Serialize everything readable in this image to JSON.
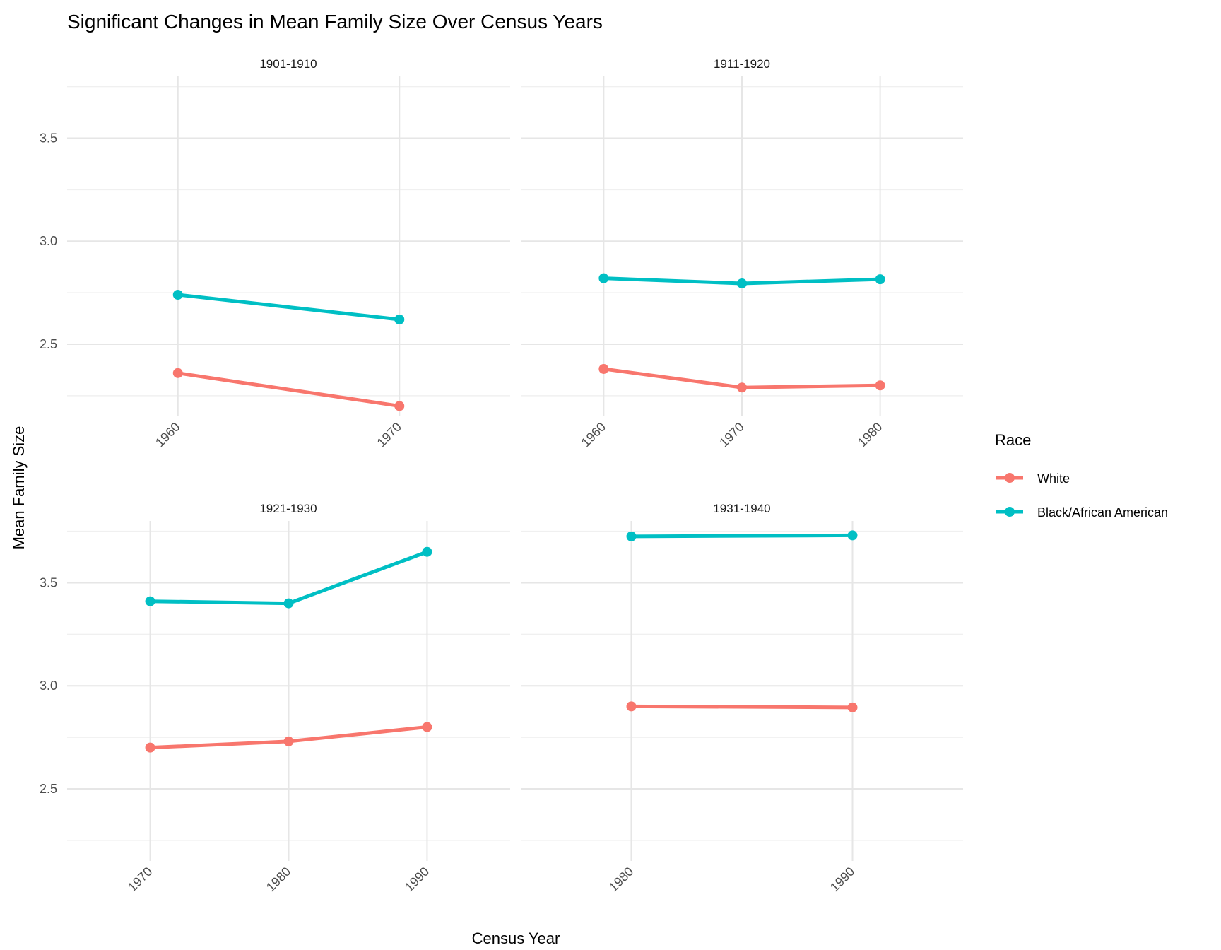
{
  "chart_data": {
    "type": "line",
    "title": "Significant Changes in Mean Family Size Over Census Years",
    "xlabel": "Census Year",
    "ylabel": "Mean Family Size",
    "ylim": [
      2.15,
      3.8
    ],
    "yticks": [
      2.5,
      3.0,
      3.5
    ],
    "y_tick_labels": [
      "2.5",
      "3.0",
      "3.5"
    ],
    "legend": {
      "title": "Race",
      "position": "right",
      "entries": [
        {
          "name": "White",
          "color": "#F8766D"
        },
        {
          "name": "Black/African American",
          "color": "#00BFC4"
        }
      ]
    },
    "panels": [
      {
        "label": "1901-1910",
        "x": [
          1960,
          1970
        ],
        "x_tick_labels": [
          "1960",
          "1970"
        ],
        "series": [
          {
            "name": "White",
            "values": [
              2.36,
              2.2
            ]
          },
          {
            "name": "Black/African American",
            "values": [
              2.74,
              2.62
            ]
          }
        ]
      },
      {
        "label": "1911-1920",
        "x": [
          1960,
          1970,
          1980
        ],
        "x_tick_labels": [
          "1960",
          "1970",
          "1980"
        ],
        "series": [
          {
            "name": "White",
            "values": [
              2.38,
              2.29,
              2.3
            ]
          },
          {
            "name": "Black/African American",
            "values": [
              2.82,
              2.795,
              2.815
            ]
          }
        ]
      },
      {
        "label": "1921-1930",
        "x": [
          1970,
          1980,
          1990
        ],
        "x_tick_labels": [
          "1970",
          "1980",
          "1990"
        ],
        "series": [
          {
            "name": "White",
            "values": [
              2.7,
              2.73,
              2.8
            ]
          },
          {
            "name": "Black/African American",
            "values": [
              3.41,
              3.4,
              3.65
            ]
          }
        ]
      },
      {
        "label": "1931-1940",
        "x": [
          1980,
          1990
        ],
        "x_tick_labels": [
          "1980",
          "1990"
        ],
        "series": [
          {
            "name": "White",
            "values": [
              2.9,
              2.895
            ]
          },
          {
            "name": "Black/African American",
            "values": [
              3.725,
              3.73
            ]
          }
        ]
      }
    ]
  }
}
